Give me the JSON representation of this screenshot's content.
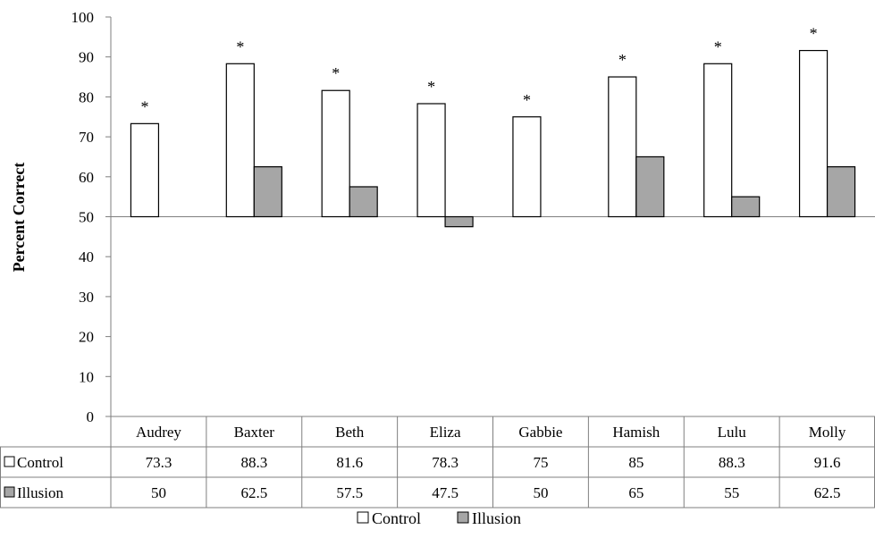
{
  "chart_data": {
    "type": "bar",
    "categories": [
      "Audrey",
      "Baxter",
      "Beth",
      "Eliza",
      "Gabbie",
      "Hamish",
      "Lulu",
      "Molly"
    ],
    "series": [
      {
        "name": "Control",
        "values": [
          73.3,
          88.3,
          81.6,
          78.3,
          75,
          85,
          88.3,
          91.6
        ],
        "color": "#ffffff"
      },
      {
        "name": "Illusion",
        "values": [
          50,
          62.5,
          57.5,
          47.5,
          50,
          65,
          55,
          62.5
        ],
        "color": "#a6a6a6"
      }
    ],
    "table_values": {
      "Control": [
        "73.3",
        "88.3",
        "81.6",
        "78.3",
        "75",
        "85",
        "88.3",
        "91.6"
      ],
      "Illusion": [
        "50",
        "62.5",
        "57.5",
        "47.5",
        "50",
        "65",
        "55",
        "62.5"
      ]
    },
    "annotations": {
      "text": "*",
      "categories": [
        "Audrey",
        "Baxter",
        "Beth",
        "Eliza",
        "Gabbie",
        "Hamish",
        "Lulu",
        "Molly"
      ]
    },
    "baseline": 50,
    "ylim": [
      0,
      100
    ],
    "yticks": [
      "0",
      "10",
      "20",
      "30",
      "40",
      "50",
      "60",
      "70",
      "80",
      "90",
      "100"
    ],
    "ylabel": "Percent Correct",
    "xlabel": "",
    "grid": false,
    "legend_position": "bottom-center",
    "data_table": true
  }
}
